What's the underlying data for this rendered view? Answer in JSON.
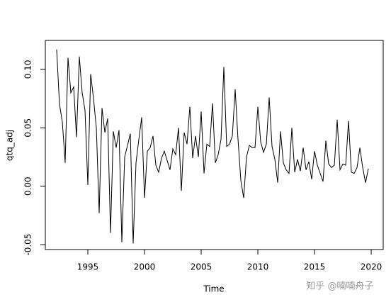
{
  "chart_data": {
    "type": "line",
    "x_label": "Time",
    "y_label": "qtq_adj",
    "watermark": "知乎 @喃喃舟子",
    "color": "#000000",
    "x": [
      1992.25,
      1992.5,
      1992.75,
      1993,
      1993.25,
      1993.5,
      1993.75,
      1994,
      1994.25,
      1994.5,
      1994.75,
      1995,
      1995.25,
      1995.5,
      1995.75,
      1996,
      1996.25,
      1996.5,
      1996.75,
      1997,
      1997.25,
      1997.5,
      1997.75,
      1998,
      1998.25,
      1998.5,
      1998.75,
      1999,
      1999.25,
      1999.5,
      1999.75,
      2000,
      2000.25,
      2000.5,
      2000.75,
      2001,
      2001.25,
      2001.5,
      2001.75,
      2002,
      2002.25,
      2002.5,
      2002.75,
      2003,
      2003.25,
      2003.5,
      2003.75,
      2004,
      2004.25,
      2004.5,
      2004.75,
      2005,
      2005.25,
      2005.5,
      2005.75,
      2006,
      2006.25,
      2006.5,
      2006.75,
      2007,
      2007.25,
      2007.5,
      2007.75,
      2008,
      2008.25,
      2008.5,
      2008.75,
      2009,
      2009.25,
      2009.5,
      2009.75,
      2010,
      2010.25,
      2010.5,
      2010.75,
      2011,
      2011.25,
      2011.5,
      2011.75,
      2012,
      2012.25,
      2012.5,
      2012.75,
      2013,
      2013.25,
      2013.5,
      2013.75,
      2014,
      2014.25,
      2014.5,
      2014.75,
      2015,
      2015.25,
      2015.5,
      2015.75,
      2016,
      2016.25,
      2016.5,
      2016.75,
      2017,
      2017.25,
      2017.5,
      2017.75,
      2018,
      2018.25,
      2018.5,
      2018.75,
      2019,
      2019.25,
      2019.5,
      2019.75
    ],
    "values": [
      0.117,
      0.07,
      0.055,
      0.02,
      0.11,
      0.08,
      0.085,
      0.042,
      0.111,
      0.08,
      0.065,
      0.001,
      0.096,
      0.075,
      0.05,
      -0.023,
      0.067,
      0.046,
      0.058,
      -0.04,
      0.047,
      0.033,
      0.048,
      -0.048,
      0.025,
      0.035,
      0.045,
      -0.049,
      0.02,
      0.04,
      0.059,
      -0.01,
      0.03,
      0.033,
      0.043,
      0.018,
      0.012,
      0.024,
      0.03,
      0.022,
      0.014,
      0.032,
      0.027,
      0.05,
      -0.004,
      0.046,
      0.036,
      0.068,
      0.024,
      0.043,
      0.025,
      0.064,
      0.011,
      0.036,
      0.034,
      0.071,
      0.02,
      0.027,
      0.04,
      0.102,
      0.034,
      0.036,
      0.043,
      0.083,
      0.04,
      0.005,
      -0.01,
      0.025,
      0.035,
      0.033,
      0.033,
      0.068,
      0.038,
      0.029,
      0.036,
      0.076,
      0.034,
      0.023,
      0.003,
      0.047,
      0.02,
      0.014,
      0.011,
      0.05,
      0.012,
      0.023,
      0.013,
      0.033,
      0.014,
      0.021,
      0.006,
      0.03,
      0.018,
      0.011,
      0.004,
      0.039,
      0.019,
      0.016,
      0.018,
      0.057,
      0.014,
      0.019,
      0.018,
      0.056,
      0.012,
      0.011,
      0.016,
      0.033,
      0.016,
      0.003,
      0.015
    ],
    "xlim": [
      1991.25,
      2021.06
    ],
    "ylim": [
      -0.0542,
      0.1248
    ],
    "xticks": [
      1995,
      2000,
      2005,
      2010,
      2015,
      2020
    ],
    "yticks": [
      {
        "value": -0.05,
        "label": "-0.05"
      },
      {
        "value": 0,
        "label": "0.00"
      },
      {
        "value": 0.05,
        "label": "0.05"
      },
      {
        "value": 0.1,
        "label": "0.10"
      }
    ]
  }
}
